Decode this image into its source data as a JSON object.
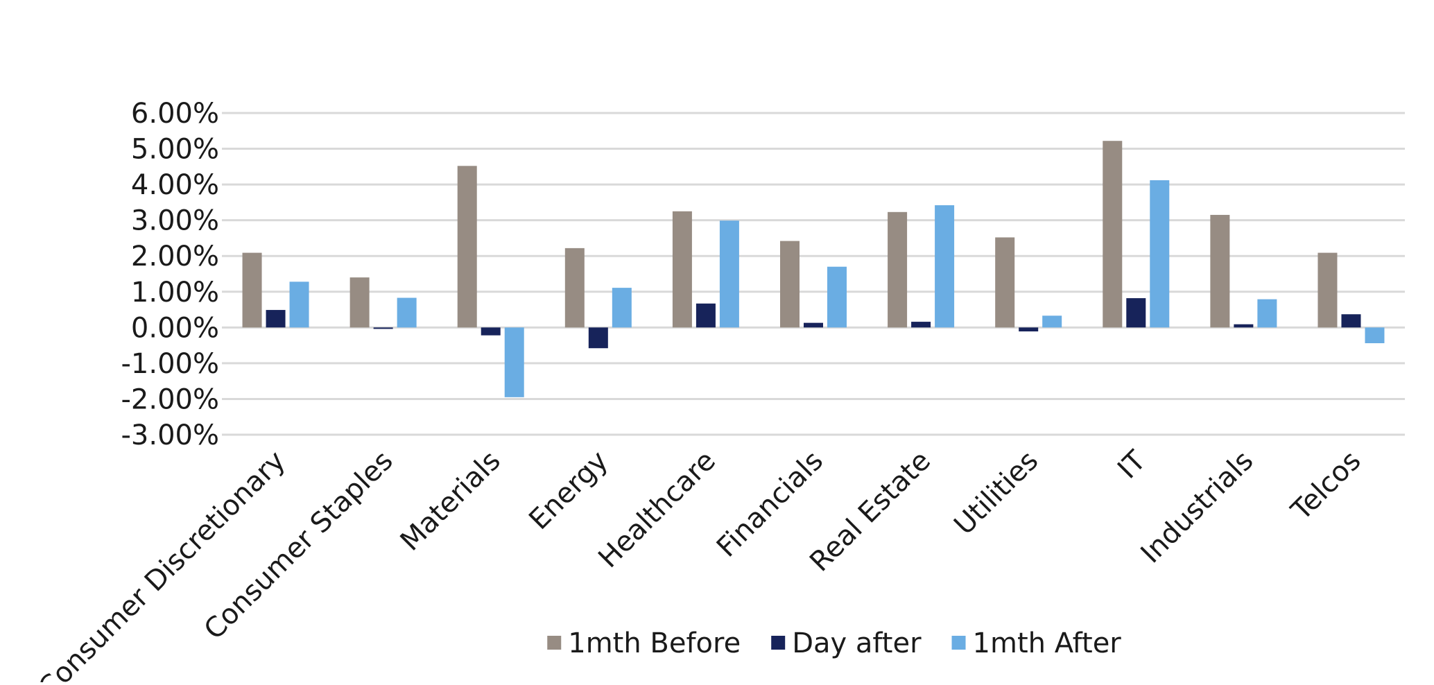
{
  "chart_data": {
    "type": "bar",
    "title": "",
    "xlabel": "",
    "ylabel": "",
    "ylim": [
      -3,
      6
    ],
    "y_ticks": [
      6,
      5,
      4,
      3,
      2,
      1,
      0,
      -1,
      -2,
      -3
    ],
    "y_tick_labels": [
      "6.00%",
      "5.00%",
      "4.00%",
      "3.00%",
      "2.00%",
      "1.00%",
      "0.00%",
      "-1.00%",
      "-2.00%",
      "-3.00%"
    ],
    "grid": true,
    "legend_position": "bottom",
    "categories": [
      "Consumer Discretionary",
      "Consumer Staples",
      "Materials",
      "Energy",
      "Healthcare",
      "Financials",
      "Real Estate",
      "Utilities",
      "IT",
      "Industrials",
      "Telcos"
    ],
    "series": [
      {
        "name": "1mth Before",
        "color": "#978c83",
        "values": [
          2.09,
          1.4,
          4.52,
          2.22,
          3.25,
          2.42,
          3.23,
          2.52,
          5.22,
          3.15,
          2.09
        ]
      },
      {
        "name": "Day after",
        "color": "#17235a",
        "values": [
          0.49,
          -0.04,
          -0.22,
          -0.58,
          0.67,
          0.13,
          0.16,
          -0.11,
          0.82,
          0.09,
          0.37
        ]
      },
      {
        "name": "1mth After",
        "color": "#6aade3",
        "values": [
          1.28,
          0.83,
          -1.95,
          1.11,
          2.99,
          1.7,
          3.42,
          0.33,
          4.12,
          0.79,
          -0.44
        ]
      }
    ]
  }
}
